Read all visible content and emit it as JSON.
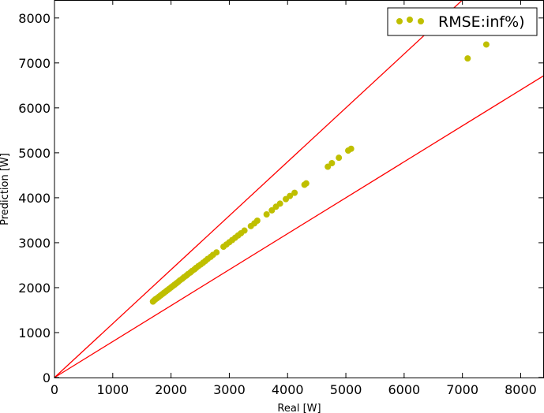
{
  "chart_data": {
    "type": "scatter",
    "title": "",
    "xlabel": "Real [W]",
    "ylabel": "Prediction [W]",
    "xlim": [
      0,
      8400
    ],
    "ylim": [
      0,
      8400
    ],
    "xticks": [
      0,
      1000,
      2000,
      3000,
      4000,
      5000,
      6000,
      7000,
      8000
    ],
    "yticks": [
      0,
      1000,
      2000,
      3000,
      4000,
      5000,
      6000,
      7000,
      8000
    ],
    "grid": false,
    "legend_position": "top-right",
    "series": [
      {
        "name": "RMSE:inf%)",
        "marker": "circle",
        "color": "#bfbf00",
        "points": [
          [
            1690,
            1690
          ],
          [
            1710,
            1715
          ],
          [
            1730,
            1740
          ],
          [
            1760,
            1765
          ],
          [
            1790,
            1795
          ],
          [
            1820,
            1825
          ],
          [
            1850,
            1855
          ],
          [
            1880,
            1885
          ],
          [
            1910,
            1915
          ],
          [
            1940,
            1945
          ],
          [
            1970,
            1975
          ],
          [
            2000,
            2005
          ],
          [
            2030,
            2035
          ],
          [
            2060,
            2065
          ],
          [
            2090,
            2095
          ],
          [
            2120,
            2125
          ],
          [
            2150,
            2160
          ],
          [
            2190,
            2195
          ],
          [
            2220,
            2230
          ],
          [
            2260,
            2265
          ],
          [
            2290,
            2300
          ],
          [
            2330,
            2335
          ],
          [
            2360,
            2370
          ],
          [
            2400,
            2405
          ],
          [
            2430,
            2440
          ],
          [
            2470,
            2480
          ],
          [
            2510,
            2515
          ],
          [
            2550,
            2555
          ],
          [
            2590,
            2595
          ],
          [
            2630,
            2640
          ],
          [
            2680,
            2685
          ],
          [
            2720,
            2730
          ],
          [
            2780,
            2785
          ],
          [
            2900,
            2910
          ],
          [
            2950,
            2960
          ],
          [
            3000,
            3010
          ],
          [
            3050,
            3060
          ],
          [
            3100,
            3110
          ],
          [
            3150,
            3160
          ],
          [
            3200,
            3210
          ],
          [
            3260,
            3270
          ],
          [
            3370,
            3370
          ],
          [
            3430,
            3430
          ],
          [
            3480,
            3490
          ],
          [
            3640,
            3630
          ],
          [
            3730,
            3720
          ],
          [
            3800,
            3800
          ],
          [
            3870,
            3870
          ],
          [
            3970,
            3970
          ],
          [
            4040,
            4040
          ],
          [
            4120,
            4110
          ],
          [
            4290,
            4290
          ],
          [
            4320,
            4320
          ],
          [
            4690,
            4690
          ],
          [
            4760,
            4770
          ],
          [
            4880,
            4890
          ],
          [
            5040,
            5050
          ],
          [
            5090,
            5090
          ],
          [
            7090,
            7100
          ],
          [
            7410,
            7410
          ]
        ]
      }
    ],
    "reference_lines": [
      {
        "slope": 1.2,
        "color": "#ff0000"
      },
      {
        "slope": 0.8,
        "color": "#ff0000"
      }
    ]
  }
}
